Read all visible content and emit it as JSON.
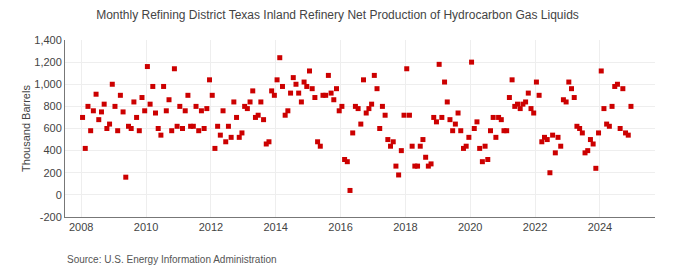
{
  "chart_data": {
    "type": "scatter",
    "title": "Monthly Refining District Texas Inland Refinery Net Production of Hydrocarbon Gas Liquids",
    "y_label": "Thousand Barrels",
    "annotations": [
      "Source: U.S. Energy Information Administration"
    ],
    "color": "#cc0000",
    "marker": "square",
    "grid": true,
    "xlim": [
      2007.5,
      2025.7
    ],
    "xticks": [
      2008,
      2010,
      2012,
      2014,
      2016,
      2018,
      2020,
      2022,
      2024
    ],
    "ylim": [
      -200,
      1400
    ],
    "yticks": [
      -200,
      0,
      200,
      400,
      600,
      800,
      {
        "value": 1000,
        "label": "1,000"
      },
      {
        "value": 1200,
        "label": "1,200"
      },
      {
        "value": 1400,
        "label": "1,400"
      }
    ],
    "x": [
      2008.0416666667,
      2008.125,
      2008.2083333333,
      2008.2916666667,
      2008.375,
      2008.4583333333,
      2008.5416666667,
      2008.625,
      2008.7083333333,
      2008.7916666667,
      2008.875,
      2008.9583333333,
      2009.0416666667,
      2009.125,
      2009.2083333333,
      2009.2916666667,
      2009.375,
      2009.4583333333,
      2009.5416666667,
      2009.625,
      2009.7083333333,
      2009.7916666667,
      2009.875,
      2009.9583333333,
      2010.0416666667,
      2010.125,
      2010.2083333333,
      2010.2916666667,
      2010.375,
      2010.4583333333,
      2010.5416666667,
      2010.625,
      2010.7083333333,
      2010.7916666667,
      2010.875,
      2010.9583333333,
      2011.0416666667,
      2011.125,
      2011.2083333333,
      2011.2916666667,
      2011.375,
      2011.4583333333,
      2011.5416666667,
      2011.625,
      2011.7083333333,
      2011.7916666667,
      2011.875,
      2011.9583333333,
      2012.0416666667,
      2012.125,
      2012.2083333333,
      2012.2916666667,
      2012.375,
      2012.4583333333,
      2012.5416666667,
      2012.625,
      2012.7083333333,
      2012.7916666667,
      2012.875,
      2012.9583333333,
      2013.0416666667,
      2013.125,
      2013.2083333333,
      2013.2916666667,
      2013.375,
      2013.4583333333,
      2013.5416666667,
      2013.625,
      2013.7083333333,
      2013.7916666667,
      2013.875,
      2013.9583333333,
      2014.0416666667,
      2014.125,
      2014.2083333333,
      2014.2916666667,
      2014.375,
      2014.4583333333,
      2014.5416666667,
      2014.625,
      2014.7083333333,
      2014.7916666667,
      2014.875,
      2014.9583333333,
      2015.0416666667,
      2015.125,
      2015.2083333333,
      2015.2916666667,
      2015.375,
      2015.4583333333,
      2015.5416666667,
      2015.625,
      2015.7083333333,
      2015.7916666667,
      2015.875,
      2015.9583333333,
      2016.0416666667,
      2016.125,
      2016.2083333333,
      2016.2916666667,
      2016.375,
      2016.4583333333,
      2016.5416666667,
      2016.625,
      2016.7083333333,
      2016.7916666667,
      2016.875,
      2016.9583333333,
      2017.0416666667,
      2017.125,
      2017.2083333333,
      2017.2916666667,
      2017.375,
      2017.4583333333,
      2017.5416666667,
      2017.625,
      2017.7083333333,
      2017.7916666667,
      2017.875,
      2017.9583333333,
      2018.0416666667,
      2018.125,
      2018.2083333333,
      2018.2916666667,
      2018.375,
      2018.4583333333,
      2018.5416666667,
      2018.625,
      2018.7083333333,
      2018.7916666667,
      2018.875,
      2018.9583333333,
      2019.0416666667,
      2019.125,
      2019.2083333333,
      2019.2916666667,
      2019.375,
      2019.4583333333,
      2019.5416666667,
      2019.625,
      2019.7083333333,
      2019.7916666667,
      2019.875,
      2019.9583333333,
      2020.0416666667,
      2020.125,
      2020.2083333333,
      2020.2916666667,
      2020.375,
      2020.4583333333,
      2020.5416666667,
      2020.625,
      2020.7083333333,
      2020.7916666667,
      2020.875,
      2020.9583333333,
      2021.0416666667,
      2021.125,
      2021.2083333333,
      2021.2916666667,
      2021.375,
      2021.4583333333,
      2021.5416666667,
      2021.625,
      2021.7083333333,
      2021.7916666667,
      2021.875,
      2021.9583333333,
      2022.0416666667,
      2022.125,
      2022.2083333333,
      2022.2916666667,
      2022.375,
      2022.4583333333,
      2022.5416666667,
      2022.625,
      2022.7083333333,
      2022.7916666667,
      2022.875,
      2022.9583333333,
      2023.0416666667,
      2023.125,
      2023.2083333333,
      2023.2916666667,
      2023.375,
      2023.4583333333,
      2023.5416666667,
      2023.625,
      2023.7083333333,
      2023.7916666667,
      2023.875,
      2023.9583333333,
      2024.0416666667,
      2024.125,
      2024.2083333333,
      2024.2916666667,
      2024.375,
      2024.4583333333,
      2024.5416666667,
      2024.625,
      2024.7083333333,
      2024.7916666667,
      2024.875,
      2024.9583333333
    ],
    "values": [
      700,
      420,
      800,
      580,
      760,
      910,
      680,
      750,
      820,
      600,
      640,
      1000,
      800,
      580,
      900,
      750,
      160,
      620,
      600,
      840,
      700,
      580,
      880,
      760,
      1160,
      820,
      980,
      740,
      600,
      540,
      980,
      760,
      860,
      580,
      1140,
      620,
      800,
      600,
      760,
      900,
      620,
      620,
      800,
      580,
      760,
      600,
      780,
      1040,
      900,
      420,
      620,
      540,
      760,
      480,
      620,
      520,
      840,
      700,
      520,
      560,
      800,
      780,
      840,
      940,
      700,
      720,
      840,
      680,
      460,
      480,
      940,
      900,
      1040,
      1240,
      980,
      720,
      760,
      920,
      1060,
      1000,
      920,
      840,
      1020,
      980,
      1120,
      960,
      880,
      480,
      440,
      900,
      900,
      1080,
      920,
      860,
      960,
      760,
      800,
      320,
      300,
      40,
      560,
      800,
      780,
      640,
      1040,
      740,
      780,
      820,
      1080,
      960,
      600,
      800,
      720,
      500,
      440,
      480,
      260,
      180,
      400,
      720,
      1140,
      720,
      440,
      260,
      260,
      440,
      500,
      340,
      260,
      280,
      700,
      660,
      1180,
      700,
      1020,
      840,
      680,
      580,
      640,
      740,
      580,
      420,
      440,
      520,
      1200,
      600,
      660,
      420,
      300,
      440,
      320,
      580,
      700,
      520,
      700,
      680,
      580,
      580,
      880,
      1040,
      800,
      820,
      780,
      820,
      840,
      920,
      780,
      740,
      1020,
      900,
      480,
      520,
      500,
      200,
      540,
      380,
      520,
      440,
      860,
      840,
      1020,
      960,
      880,
      620,
      600,
      560,
      380,
      400,
      500,
      460,
      240,
      560,
      1120,
      780,
      640,
      620,
      800,
      980,
      1000,
      600,
      960,
      560,
      540,
      800
    ]
  }
}
